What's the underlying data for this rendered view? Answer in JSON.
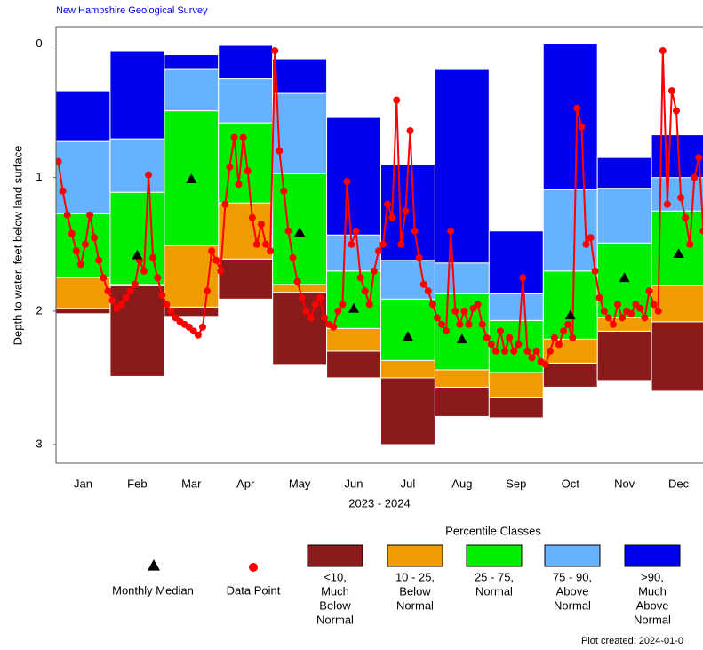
{
  "chart_data": {
    "type": "percentile_bar",
    "header": "New Hampshire Geological Survey",
    "y_label": "Depth to water, feet below land surface",
    "x_label": "2023 - 2024",
    "categories": [
      "Jan",
      "Feb",
      "Mar",
      "Apr",
      "May",
      "Jun",
      "Jul",
      "Aug",
      "Sep",
      "Oct",
      "Nov",
      "Dec"
    ],
    "ylim": [
      -0.13,
      3.14
    ],
    "y_reversed": true,
    "yticks": [
      0,
      1,
      2,
      3
    ],
    "legend_title": "Percentile Classes",
    "series": [
      {
        "name": [
          "<10,",
          "Much",
          "Below",
          "Normal"
        ],
        "color": "#8b1a1a",
        "values": [
          [
            1.98,
            2.02
          ],
          [
            1.81,
            2.49
          ],
          [
            1.97,
            2.04
          ],
          [
            1.61,
            1.91
          ],
          [
            1.86,
            2.4
          ],
          [
            2.3,
            2.5
          ],
          [
            2.5,
            3.0
          ],
          [
            2.57,
            2.79
          ],
          [
            2.65,
            2.8
          ],
          [
            2.39,
            2.57
          ],
          [
            2.15,
            2.52
          ],
          [
            2.08,
            2.6
          ]
        ]
      },
      {
        "name": [
          "10 - 25,",
          "Below",
          "Normal"
        ],
        "color": "#f09c00",
        "values": [
          [
            1.75,
            1.98
          ],
          [
            1.8,
            1.81
          ],
          [
            1.51,
            1.97
          ],
          [
            1.19,
            1.61
          ],
          [
            1.8,
            1.86
          ],
          [
            2.13,
            2.3
          ],
          [
            2.37,
            2.5
          ],
          [
            2.44,
            2.57
          ],
          [
            2.46,
            2.65
          ],
          [
            2.21,
            2.39
          ],
          [
            2.05,
            2.15
          ],
          [
            1.81,
            2.08
          ]
        ]
      },
      {
        "name": [
          "25 - 75,",
          "Normal"
        ],
        "color": "#00ee00",
        "values": [
          [
            1.27,
            1.75
          ],
          [
            1.11,
            1.8
          ],
          [
            0.5,
            1.51
          ],
          [
            0.59,
            1.19
          ],
          [
            0.97,
            1.8
          ],
          [
            1.7,
            2.13
          ],
          [
            1.91,
            2.37
          ],
          [
            1.87,
            2.44
          ],
          [
            2.07,
            2.46
          ],
          [
            1.7,
            2.21
          ],
          [
            1.49,
            2.05
          ],
          [
            1.25,
            1.81
          ]
        ]
      },
      {
        "name": [
          "75 - 90,",
          "Above",
          "Normal"
        ],
        "color": "#66b2ff",
        "values": [
          [
            0.73,
            1.27
          ],
          [
            0.71,
            1.11
          ],
          [
            0.19,
            0.5
          ],
          [
            0.26,
            0.59
          ],
          [
            0.37,
            0.97
          ],
          [
            1.43,
            1.7
          ],
          [
            1.62,
            1.91
          ],
          [
            1.64,
            1.87
          ],
          [
            1.87,
            2.07
          ],
          [
            1.09,
            1.7
          ],
          [
            1.08,
            1.49
          ],
          [
            1.0,
            1.25
          ]
        ]
      },
      {
        "name": [
          ">90,",
          "Much",
          "Above",
          "Normal"
        ],
        "color": "#0000ee",
        "values": [
          [
            0.35,
            0.73
          ],
          [
            0.05,
            0.71
          ],
          [
            0.08,
            0.19
          ],
          [
            0.01,
            0.26
          ],
          [
            0.11,
            0.37
          ],
          [
            0.55,
            1.43
          ],
          [
            0.9,
            1.62
          ],
          [
            0.19,
            1.64
          ],
          [
            1.4,
            1.87
          ],
          [
            0.0,
            1.09
          ],
          [
            0.85,
            1.08
          ],
          [
            0.68,
            1.0
          ]
        ]
      }
    ],
    "median": {
      "name": "Monthly Median",
      "color": "#000000",
      "values": [
        null,
        1.58,
        1.01,
        null,
        1.41,
        1.98,
        2.19,
        2.21,
        null,
        2.03,
        1.75,
        1.57
      ]
    },
    "points": {
      "name": "Data Point",
      "color": "#ff0000",
      "values": [
        0.88,
        1.1,
        1.28,
        1.42,
        1.55,
        1.65,
        1.5,
        1.28,
        1.45,
        1.62,
        1.75,
        1.85,
        1.92,
        1.98,
        1.95,
        1.9,
        1.85,
        1.8,
        1.62,
        1.7,
        0.98,
        1.6,
        1.75,
        1.88,
        1.95,
        2.0,
        2.05,
        2.08,
        2.1,
        2.12,
        2.15,
        2.18,
        2.12,
        1.85,
        1.55,
        1.62,
        1.7,
        1.2,
        0.92,
        0.7,
        1.05,
        0.7,
        0.95,
        1.3,
        1.5,
        1.35,
        1.5,
        1.55,
        0.05,
        0.8,
        1.1,
        1.4,
        1.6,
        1.78,
        1.9,
        2.0,
        2.05,
        1.95,
        1.9,
        2.05,
        2.1,
        2.12,
        2.0,
        1.95,
        1.03,
        1.5,
        1.4,
        1.75,
        1.85,
        1.95,
        1.7,
        1.55,
        1.5,
        1.2,
        1.3,
        0.42,
        1.5,
        1.25,
        0.65,
        1.4,
        1.6,
        1.8,
        1.85,
        1.95,
        2.05,
        2.1,
        2.15,
        1.4,
        2.0,
        2.1,
        2.0,
        2.1,
        1.98,
        1.95,
        2.1,
        2.2,
        2.25,
        2.3,
        2.15,
        2.3,
        2.2,
        2.3,
        2.25,
        1.75,
        2.3,
        2.35,
        2.3,
        2.38,
        2.4,
        2.3,
        2.2,
        2.25,
        2.15,
        2.1,
        2.2,
        0.48,
        0.62,
        1.5,
        1.45,
        1.7,
        1.9,
        2.0,
        2.05,
        2.1,
        1.95,
        2.05,
        2.0,
        2.02,
        1.95,
        1.98,
        2.05,
        1.85,
        1.95,
        2.0,
        0.05,
        1.2,
        0.35,
        0.5,
        1.15,
        1.3,
        1.5,
        1.0,
        0.85,
        1.4
      ]
    },
    "footer": "Plot created: 2024-01-0"
  }
}
